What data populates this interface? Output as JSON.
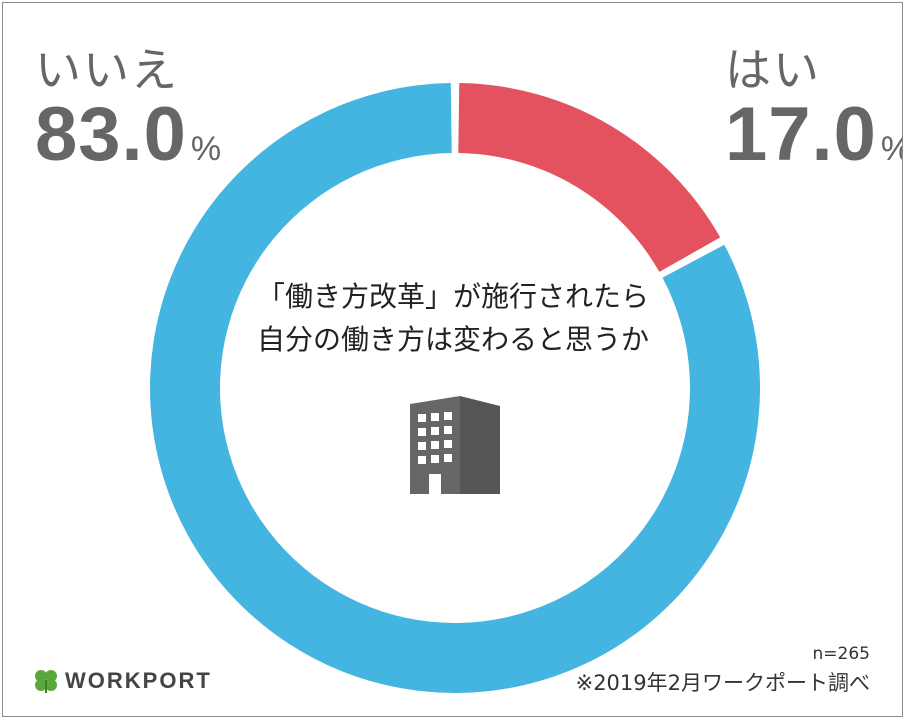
{
  "chart_data": {
    "type": "pie",
    "variant": "donut",
    "slices": [
      {
        "label": "はい",
        "value": 17.0,
        "color": "#e5525f"
      },
      {
        "label": "いいえ",
        "value": 83.0,
        "color": "#44b4e0"
      }
    ],
    "unit": "%",
    "question_lines": [
      "「働き方改革」が施行されたら",
      "自分の働き方は変わると思うか"
    ]
  },
  "labels": {
    "yes": {
      "word": "はい",
      "value": "17.0",
      "unit": "%"
    },
    "no": {
      "word": "いいえ",
      "value": "83.0",
      "unit": "%"
    }
  },
  "footer": {
    "sample_size": "n=265",
    "source": "※2019年2月ワークポート調べ",
    "logo_text": "WORKPORT"
  },
  "icons": {
    "center": "building-icon",
    "logo": "clover-icon"
  }
}
